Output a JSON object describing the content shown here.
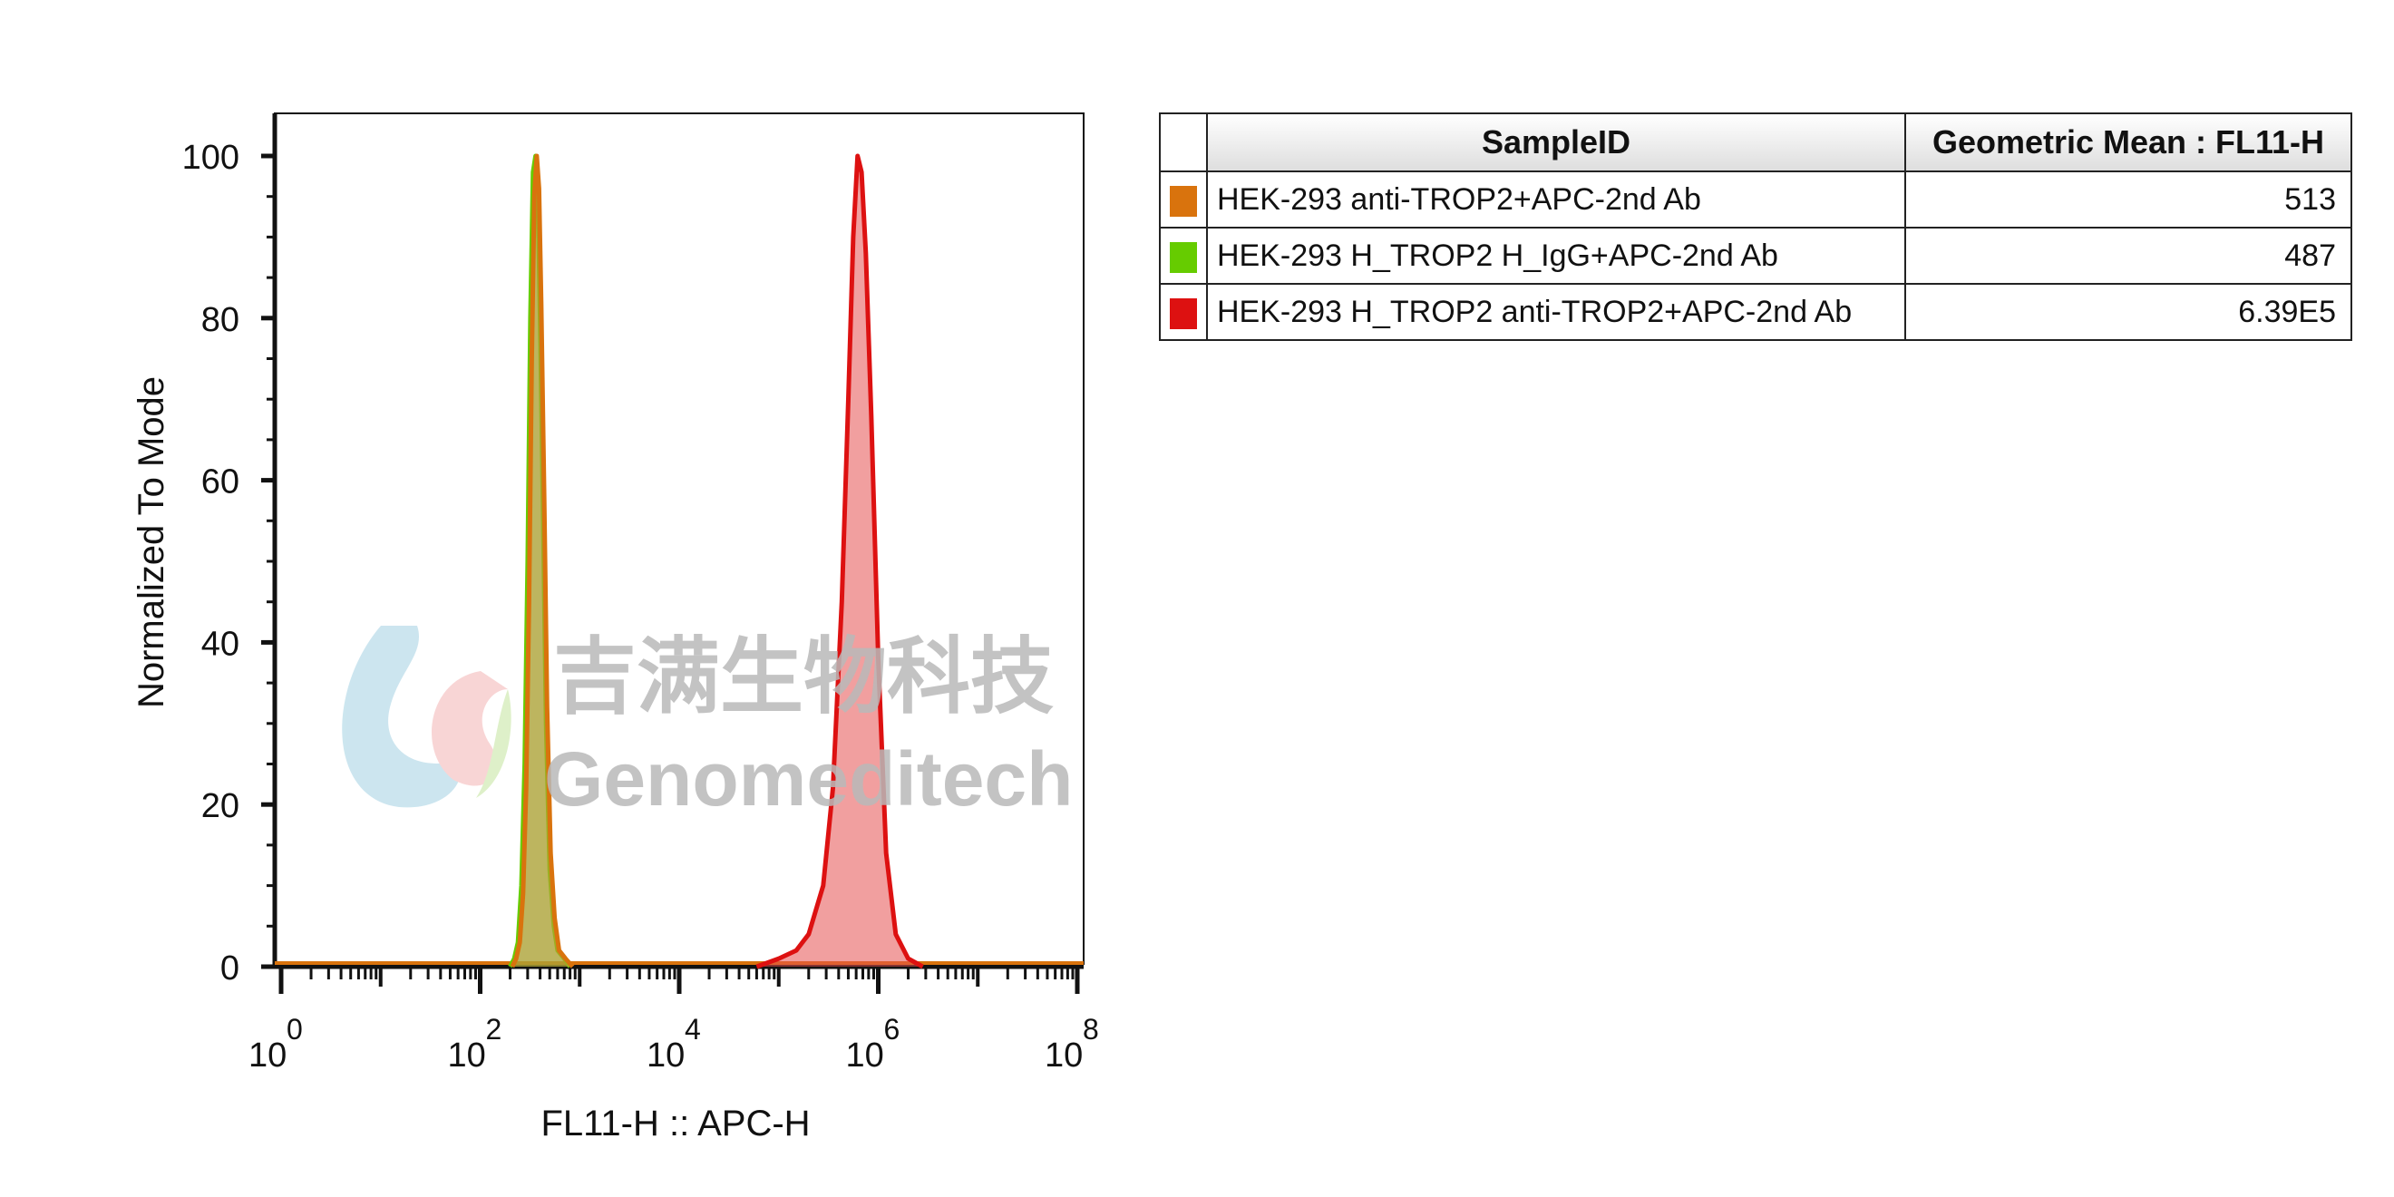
{
  "chart_data": {
    "type": "area",
    "xlabel": "FL11-H :: APC-H",
    "ylabel": "Normalized To Mode",
    "x_scale": "log10",
    "xlim": [
      1,
      100000000
    ],
    "ylim": [
      0,
      105
    ],
    "x_ticks": [
      {
        "base": "10",
        "exp": "0",
        "value": 1
      },
      {
        "base": "10",
        "exp": "2",
        "value": 100
      },
      {
        "base": "10",
        "exp": "4",
        "value": 10000
      },
      {
        "base": "10",
        "exp": "6",
        "value": 1000000
      },
      {
        "base": "10",
        "exp": "8",
        "value": 100000000
      }
    ],
    "y_ticks": [
      "0",
      "20",
      "40",
      "60",
      "80",
      "100"
    ],
    "legend_placement": "right",
    "series": [
      {
        "name": "HEK-293 H_TROP2 H_IgG+APC-2nd Ab",
        "color": "#66cc00",
        "fill": "rgba(110,190,40,0.55)",
        "x": [
          200,
          220,
          240,
          260,
          280,
          300,
          320,
          340,
          360,
          380,
          400,
          430,
          460,
          500,
          550,
          600,
          700,
          800
        ],
        "y": [
          0,
          1,
          3,
          10,
          25,
          50,
          80,
          98,
          100,
          95,
          80,
          55,
          30,
          12,
          5,
          2,
          1,
          0
        ]
      },
      {
        "name": "HEK-293 anti-TROP2+APC-2nd Ab",
        "color": "#d9730d",
        "fill": "rgba(200,150,60,0.55)",
        "x": [
          210,
          230,
          250,
          270,
          290,
          310,
          330,
          350,
          370,
          390,
          410,
          440,
          470,
          510,
          560,
          620,
          720,
          850
        ],
        "y": [
          0,
          1,
          3,
          9,
          22,
          45,
          75,
          95,
          100,
          96,
          82,
          58,
          32,
          14,
          6,
          2,
          1,
          0
        ]
      },
      {
        "name": "HEK-293 H_TROP2 anti-TROP2+APC-2nd Ab",
        "color": "#dd1111",
        "fill": "rgba(230,80,80,0.55)",
        "x": [
          60000,
          100000,
          150000,
          200000,
          280000,
          350000,
          430000,
          500000,
          560000,
          620000,
          680000,
          750000,
          850000,
          1000000,
          1200000,
          1500000,
          2000000,
          2800000
        ],
        "y": [
          0,
          1,
          2,
          4,
          10,
          22,
          45,
          70,
          90,
          100,
          98,
          88,
          68,
          38,
          14,
          4,
          1,
          0
        ]
      }
    ]
  },
  "table": {
    "header": {
      "sample_id": "SampleID",
      "geo_mean": "Geometric Mean : FL11-H"
    },
    "rows": [
      {
        "color": "#d9730d",
        "sample_id": "HEK-293 anti-TROP2+APC-2nd Ab",
        "geo_mean": "513"
      },
      {
        "color": "#66cc00",
        "sample_id": "HEK-293 H_TROP2 H_IgG+APC-2nd Ab",
        "geo_mean": "487"
      },
      {
        "color": "#dd1111",
        "sample_id": "HEK-293 H_TROP2 anti-TROP2+APC-2nd Ab",
        "geo_mean": "6.39E5"
      }
    ]
  },
  "watermark": {
    "text_cn": "吉满生物科技",
    "text_en": "Genomeditech"
  }
}
